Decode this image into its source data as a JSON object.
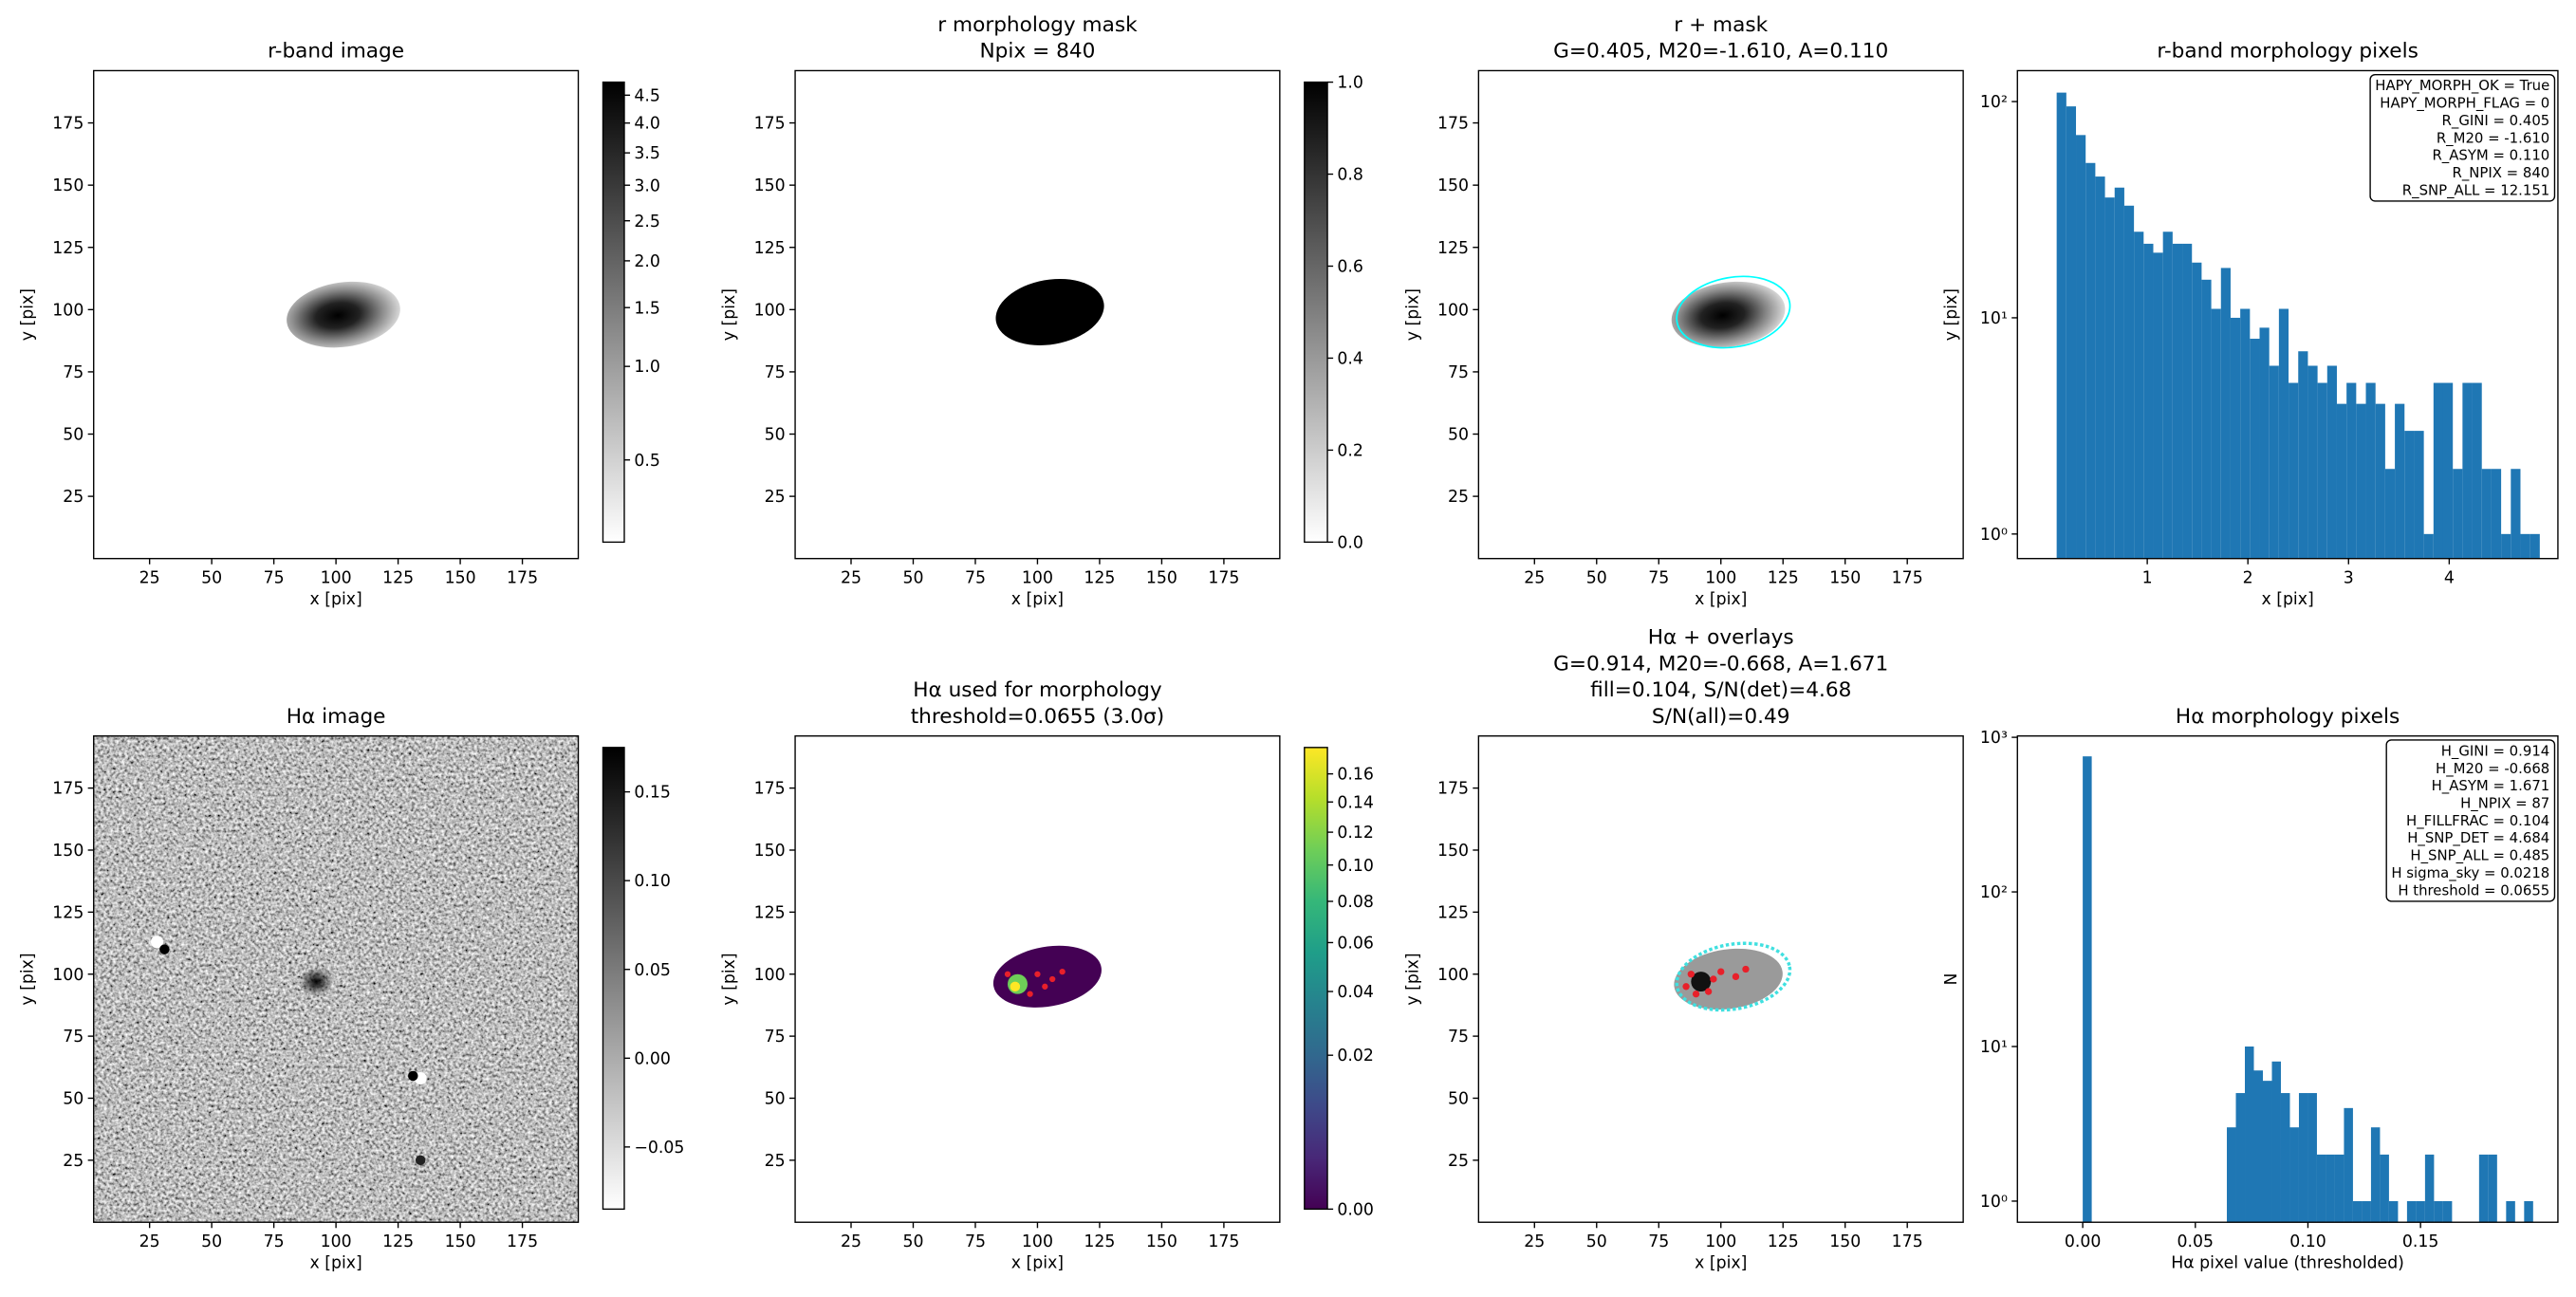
{
  "chart_data": [
    {
      "type": "image",
      "title": "r-band image",
      "xlabel": "x [pix]",
      "ylabel": "y [pix]",
      "xlim": [
        2.5,
        197.5
      ],
      "ylim": [
        0,
        196
      ],
      "xticks": [
        25,
        50,
        75,
        100,
        125,
        150,
        175
      ],
      "yticks": [
        25,
        50,
        75,
        100,
        125,
        150,
        175
      ],
      "colorbar": {
        "cmap": "gray_r",
        "cscale": "sqrt",
        "clim": [
          0.36,
          4.745
        ],
        "cticks": [
          0.5,
          {
            "value": 1,
            "label": "1.0"
          },
          1.5,
          {
            "value": 2,
            "label": "2.0"
          },
          2.5,
          {
            "value": 3,
            "label": "3.0"
          },
          3.5,
          {
            "value": 4,
            "label": "4.0"
          },
          4.5
        ]
      }
    },
    {
      "type": "image",
      "title": "r morphology mask",
      "subtitle": [
        "Npix = 840"
      ],
      "xlabel": "x [pix]",
      "ylabel": "y [pix]",
      "xlim": [
        2.5,
        197.5
      ],
      "ylim": [
        0,
        196
      ],
      "xticks": [
        25,
        50,
        75,
        100,
        125,
        150,
        175
      ],
      "yticks": [
        25,
        50,
        75,
        100,
        125,
        150,
        175
      ],
      "colorbar": {
        "cmap": "gray_r",
        "cscale": "linear",
        "clim": [
          0,
          1
        ],
        "cticks": [
          {
            "value": 0,
            "label": "0.0"
          },
          0.2,
          0.4,
          0.6,
          0.8,
          {
            "value": 1,
            "label": "1.0"
          }
        ]
      }
    },
    {
      "type": "image",
      "title": "r + mask",
      "subtitle": [
        "G=0.405, M20=-1.610, A=0.110"
      ],
      "xlabel": "x [pix]",
      "ylabel": "y [pix]",
      "xlim": [
        2.5,
        197.5
      ],
      "ylim": [
        0,
        196
      ],
      "xticks": [
        25,
        50,
        75,
        100,
        125,
        150,
        175
      ],
      "yticks": [
        25,
        50,
        75,
        100,
        125,
        150,
        175
      ]
    },
    {
      "type": "histogram",
      "title": "r-band morphology pixels",
      "xlabel": "x [pix]",
      "ylabel": "y [pix]",
      "color": "#1f77b4",
      "yscale": "log",
      "xlim": [
        -0.29,
        5.08
      ],
      "ylim": [
        0.77,
        139
      ],
      "xticks": [
        1,
        2,
        3,
        4
      ],
      "yticks": [
        {
          "value": 1,
          "label": "10⁰"
        },
        {
          "value": 10,
          "label": "10¹"
        },
        {
          "value": 100,
          "label": "10²"
        }
      ],
      "bins": [
        0.1,
        0.196,
        0.292,
        0.388,
        0.484,
        0.58,
        0.676,
        0.772,
        0.868,
        0.964,
        1.06,
        1.156,
        1.252,
        1.348,
        1.444,
        1.54,
        1.636,
        1.732,
        1.828,
        1.924,
        2.02,
        2.116,
        2.212,
        2.308,
        2.404,
        2.5,
        2.596,
        2.692,
        2.788,
        2.884,
        2.98,
        3.076,
        3.172,
        3.268,
        3.364,
        3.46,
        3.556,
        3.652,
        3.748,
        3.844,
        3.94,
        4.036,
        4.132,
        4.228,
        4.324,
        4.42,
        4.516,
        4.612,
        4.708,
        4.804,
        4.9
      ],
      "counts": [
        110,
        95,
        70,
        52,
        45,
        36,
        40,
        33,
        25,
        22,
        20,
        25,
        22,
        22,
        18,
        15,
        11,
        17,
        10,
        11,
        8,
        9,
        6,
        11,
        5,
        7,
        6,
        5,
        6,
        4,
        5,
        4,
        5,
        4,
        2,
        4,
        3,
        3,
        1,
        5,
        5,
        2,
        5,
        5,
        2,
        2,
        1,
        2,
        1,
        1
      ],
      "annotation": [
        "HAPY_MORPH_OK = True",
        "HAPY_MORPH_FLAG = 0",
        "R_GINI = 0.405",
        "R_M20 = -1.610",
        "R_ASYM = 0.110",
        "R_NPIX = 840",
        "R_SNP_ALL = 12.151"
      ]
    },
    {
      "type": "image",
      "title": "Hα image",
      "xlabel": "x [pix]",
      "ylabel": "y [pix]",
      "xlim": [
        2.5,
        197.5
      ],
      "ylim": [
        0,
        196
      ],
      "xticks": [
        25,
        50,
        75,
        100,
        125,
        150,
        175
      ],
      "yticks": [
        25,
        50,
        75,
        100,
        125,
        150,
        175
      ],
      "colorbar": {
        "cmap": "gray_r",
        "cscale": "linear",
        "clim": [
          -0.085,
          0.175
        ],
        "cticks": [
          {
            "value": -0.05,
            "label": "−0.05"
          },
          {
            "value": 0,
            "label": "0.00"
          },
          0.05,
          {
            "value": 0.1,
            "label": "0.10"
          },
          0.15
        ]
      }
    },
    {
      "type": "image",
      "title": "Hα used for morphology",
      "subtitle": [
        "threshold=0.0655 (3.0σ)"
      ],
      "xlabel": "x [pix]",
      "ylabel": "y [pix]",
      "xlim": [
        2.5,
        197.5
      ],
      "ylim": [
        0,
        196
      ],
      "xticks": [
        25,
        50,
        75,
        100,
        125,
        150,
        175
      ],
      "yticks": [
        25,
        50,
        75,
        100,
        125,
        150,
        175
      ],
      "colorbar": {
        "cmap": "viridis",
        "cscale": "sqrt",
        "clim": [
          0,
          0.18
        ],
        "cticks": [
          {
            "value": 0,
            "label": "0.00"
          },
          0.02,
          0.04,
          0.06,
          0.08,
          {
            "value": 0.1,
            "label": "0.10"
          },
          0.12,
          0.14,
          0.16
        ]
      }
    },
    {
      "type": "image",
      "title": "Hα + overlays",
      "subtitle": [
        "G=0.914, M20=-0.668, A=1.671",
        "fill=0.104, S/N(det)=4.68",
        "S/N(all)=0.49"
      ],
      "xlabel": "x [pix]",
      "ylabel": "y [pix]",
      "xlim": [
        2.5,
        197.5
      ],
      "ylim": [
        0,
        196
      ],
      "xticks": [
        25,
        50,
        75,
        100,
        125,
        150,
        175
      ],
      "yticks": [
        25,
        50,
        75,
        100,
        125,
        150,
        175
      ]
    },
    {
      "type": "histogram",
      "title": "Hα morphology pixels",
      "xlabel": "Hα pixel value (thresholded)",
      "ylabel": "N",
      "color": "#1f77b4",
      "yscale": "log",
      "xlim": [
        -0.029,
        0.211
      ],
      "ylim": [
        0.73,
        1020
      ],
      "xticks": [
        {
          "value": 0,
          "label": "0.00"
        },
        0.05,
        {
          "value": 0.1,
          "label": "0.10"
        },
        0.15
      ],
      "yticks": [
        {
          "value": 1,
          "label": "10⁰"
        },
        {
          "value": 10,
          "label": "10¹"
        },
        {
          "value": 100,
          "label": "10²"
        },
        {
          "value": 1000,
          "label": "10³"
        }
      ],
      "bins": [
        0,
        0.004,
        0.008,
        0.012,
        0.016,
        0.02,
        0.024,
        0.028,
        0.032,
        0.036,
        0.04,
        0.044,
        0.048,
        0.052,
        0.056,
        0.06,
        0.064,
        0.068,
        0.072,
        0.076,
        0.08,
        0.084,
        0.088,
        0.092,
        0.096,
        0.1,
        0.104,
        0.108,
        0.112,
        0.116,
        0.12,
        0.124,
        0.128,
        0.132,
        0.136,
        0.14,
        0.144,
        0.148,
        0.152,
        0.156,
        0.16,
        0.164,
        0.168,
        0.172,
        0.176,
        0.18,
        0.184,
        0.188,
        0.192,
        0.196,
        0.2
      ],
      "counts": [
        753,
        0,
        0,
        0,
        0,
        0,
        0,
        0,
        0,
        0,
        0,
        0,
        0,
        0,
        0,
        0,
        3,
        5,
        10,
        7,
        6,
        8,
        5,
        3,
        5,
        5,
        2,
        2,
        2,
        4,
        1,
        1,
        3,
        2,
        1,
        0,
        1,
        1,
        2,
        1,
        1,
        0,
        0,
        0,
        2,
        2,
        0,
        1,
        0,
        1
      ],
      "annotation": [
        "H_GINI = 0.914",
        "H_M20 = -0.668",
        "H_ASYM = 1.671",
        "H_NPIX = 87",
        "H_FILLFRAC = 0.104",
        "H_SNP_DET = 4.684",
        "H_SNP_ALL = 0.485",
        "H sigma_sky = 0.0218",
        "H threshold = 0.0655"
      ]
    }
  ]
}
